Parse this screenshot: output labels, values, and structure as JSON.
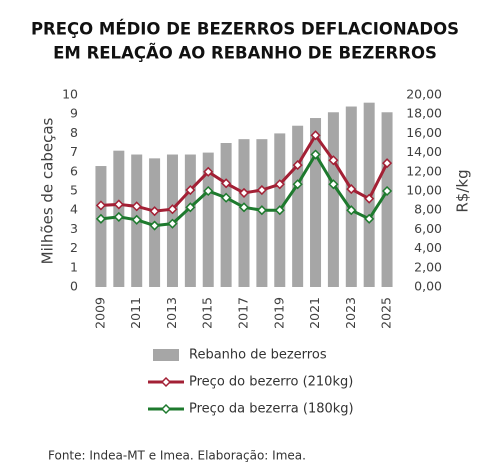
{
  "chart_data": {
    "type": "bar",
    "title": [
      "PREÇO MÉDIO DE BEZERROS DEFLACIONADOS",
      "EM RELAÇÃO AO REBANHO DE BEZERROS"
    ],
    "y_label": "Milhões de cabeças",
    "y2_label": "R$/kg",
    "source": "Fonte: Indea-MT e Imea. Elaboração: Imea.",
    "x": [
      2009,
      2010,
      2011,
      2012,
      2013,
      2014,
      2015,
      2016,
      2017,
      2018,
      2019,
      2020,
      2021,
      2022,
      2023,
      2024,
      2025
    ],
    "xlim": [
      2008.5,
      2025.5
    ],
    "xticks": [
      2009,
      2011,
      2013,
      2015,
      2017,
      2019,
      2021,
      2023,
      2025
    ],
    "ylim": [
      0,
      10
    ],
    "yticks": [
      0,
      1,
      2,
      3,
      4,
      5,
      6,
      7,
      8,
      9,
      10
    ],
    "y2lim": [
      0,
      20
    ],
    "y2ticks": [
      {
        "value": 0,
        "label": "0,00"
      },
      {
        "value": 2,
        "label": "2,00"
      },
      {
        "value": 4,
        "label": "4,00"
      },
      {
        "value": 6,
        "label": "6,00"
      },
      {
        "value": 8,
        "label": "8,00"
      },
      {
        "value": 10,
        "label": "10,00"
      },
      {
        "value": 12,
        "label": "12,00"
      },
      {
        "value": 14,
        "label": "14,00"
      },
      {
        "value": 16,
        "label": "16,00"
      },
      {
        "value": 18,
        "label": "18,00"
      },
      {
        "value": 20,
        "label": "20,00"
      }
    ],
    "series": [
      {
        "name": "Rebanho de bezerros",
        "type": "bar",
        "color": "#a6a6a6",
        "axis": "y",
        "values": [
          6.3,
          7.1,
          6.9,
          6.7,
          6.9,
          6.9,
          7.0,
          7.5,
          7.7,
          7.7,
          8.0,
          8.4,
          8.8,
          9.1,
          9.4,
          9.6,
          9.1
        ]
      },
      {
        "name": "Preço do bezerro (210kg)",
        "type": "line",
        "color": "#a32035",
        "axis": "y2",
        "values": [
          8.5,
          8.6,
          8.4,
          7.9,
          8.1,
          10.1,
          12.0,
          10.8,
          9.8,
          10.1,
          10.7,
          12.7,
          15.8,
          13.2,
          10.2,
          9.2,
          12.9
        ]
      },
      {
        "name": "Preço da bezerra (180kg)",
        "type": "line",
        "color": "#1e7a2e",
        "axis": "y2",
        "values": [
          7.1,
          7.3,
          7.0,
          6.4,
          6.6,
          8.3,
          10.0,
          9.3,
          8.3,
          8.0,
          8.0,
          10.7,
          13.8,
          10.7,
          8.0,
          7.1,
          10.0
        ]
      }
    ]
  }
}
